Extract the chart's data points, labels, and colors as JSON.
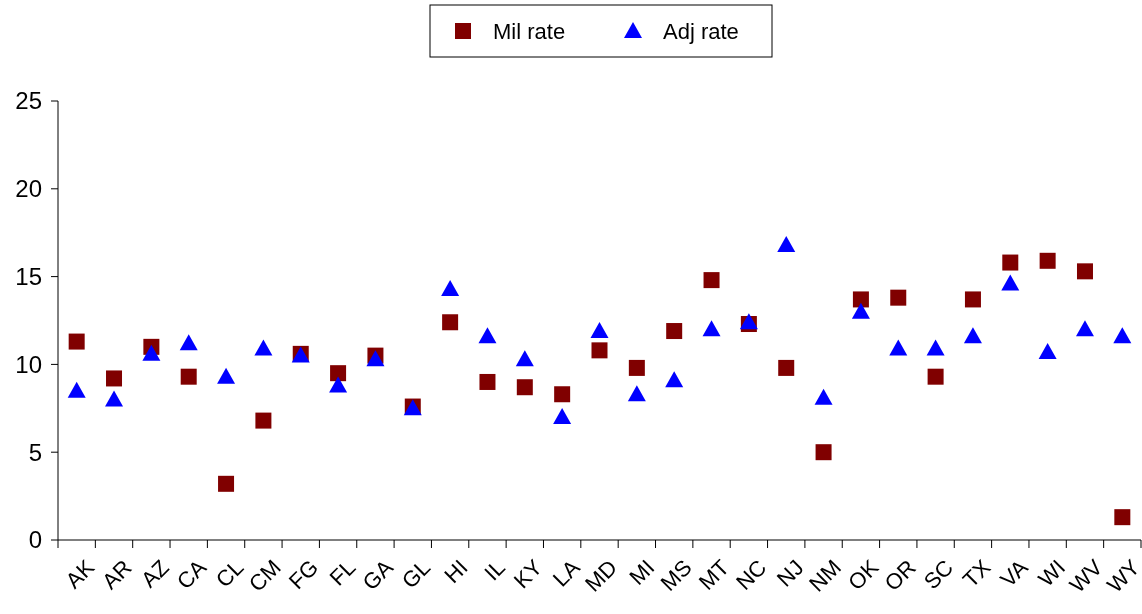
{
  "chart_data": {
    "type": "scatter",
    "categories": [
      "AK",
      "AR",
      "AZ",
      "CA",
      "CL",
      "CM",
      "FG",
      "FL",
      "GA",
      "GL",
      "HI",
      "IL",
      "KY",
      "LA",
      "MD",
      "MI",
      "MS",
      "MT",
      "NC",
      "NJ",
      "NM",
      "OK",
      "OR",
      "SC",
      "TX",
      "VA",
      "WI",
      "WV",
      "WY"
    ],
    "series": [
      {
        "name": "Mil rate",
        "color": "#800000",
        "marker": "square",
        "values": [
          11.3,
          9.2,
          11.0,
          9.3,
          3.2,
          6.8,
          10.6,
          9.5,
          10.5,
          7.6,
          12.4,
          9.0,
          8.7,
          8.3,
          10.8,
          9.8,
          11.9,
          14.8,
          12.3,
          9.8,
          5.0,
          13.7,
          13.8,
          9.3,
          13.7,
          15.8,
          15.9,
          15.3,
          1.3
        ]
      },
      {
        "name": "Adj rate",
        "color": "#0000ff",
        "marker": "triangle",
        "values": [
          8.5,
          8.0,
          10.6,
          11.2,
          9.3,
          10.9,
          10.5,
          8.8,
          10.3,
          7.5,
          14.3,
          11.6,
          10.3,
          7.0,
          11.9,
          8.3,
          9.1,
          12.0,
          12.4,
          16.8,
          8.1,
          13.0,
          10.9,
          10.9,
          11.6,
          14.6,
          10.7,
          12.0,
          11.6
        ]
      }
    ],
    "ylim": [
      0,
      25
    ],
    "yticks": [
      0,
      5,
      10,
      15,
      20,
      25
    ],
    "grid": false,
    "legend": "top"
  }
}
